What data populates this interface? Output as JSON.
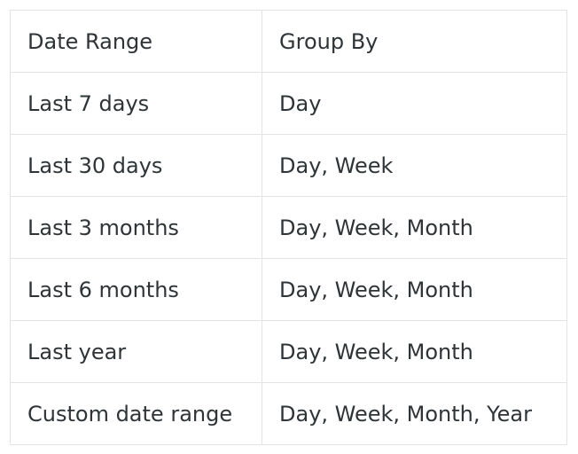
{
  "table": {
    "headers": [
      "Date Range",
      "Group By"
    ],
    "rows": [
      [
        "Last 7 days",
        "Day"
      ],
      [
        "Last 30 days",
        "Day, Week"
      ],
      [
        "Last 3 months",
        "Day, Week, Month"
      ],
      [
        "Last 6 months",
        "Day, Week, Month"
      ],
      [
        "Last year",
        "Day, Week, Month"
      ],
      [
        "Custom date range",
        "Day, Week, Month, Year"
      ]
    ]
  }
}
